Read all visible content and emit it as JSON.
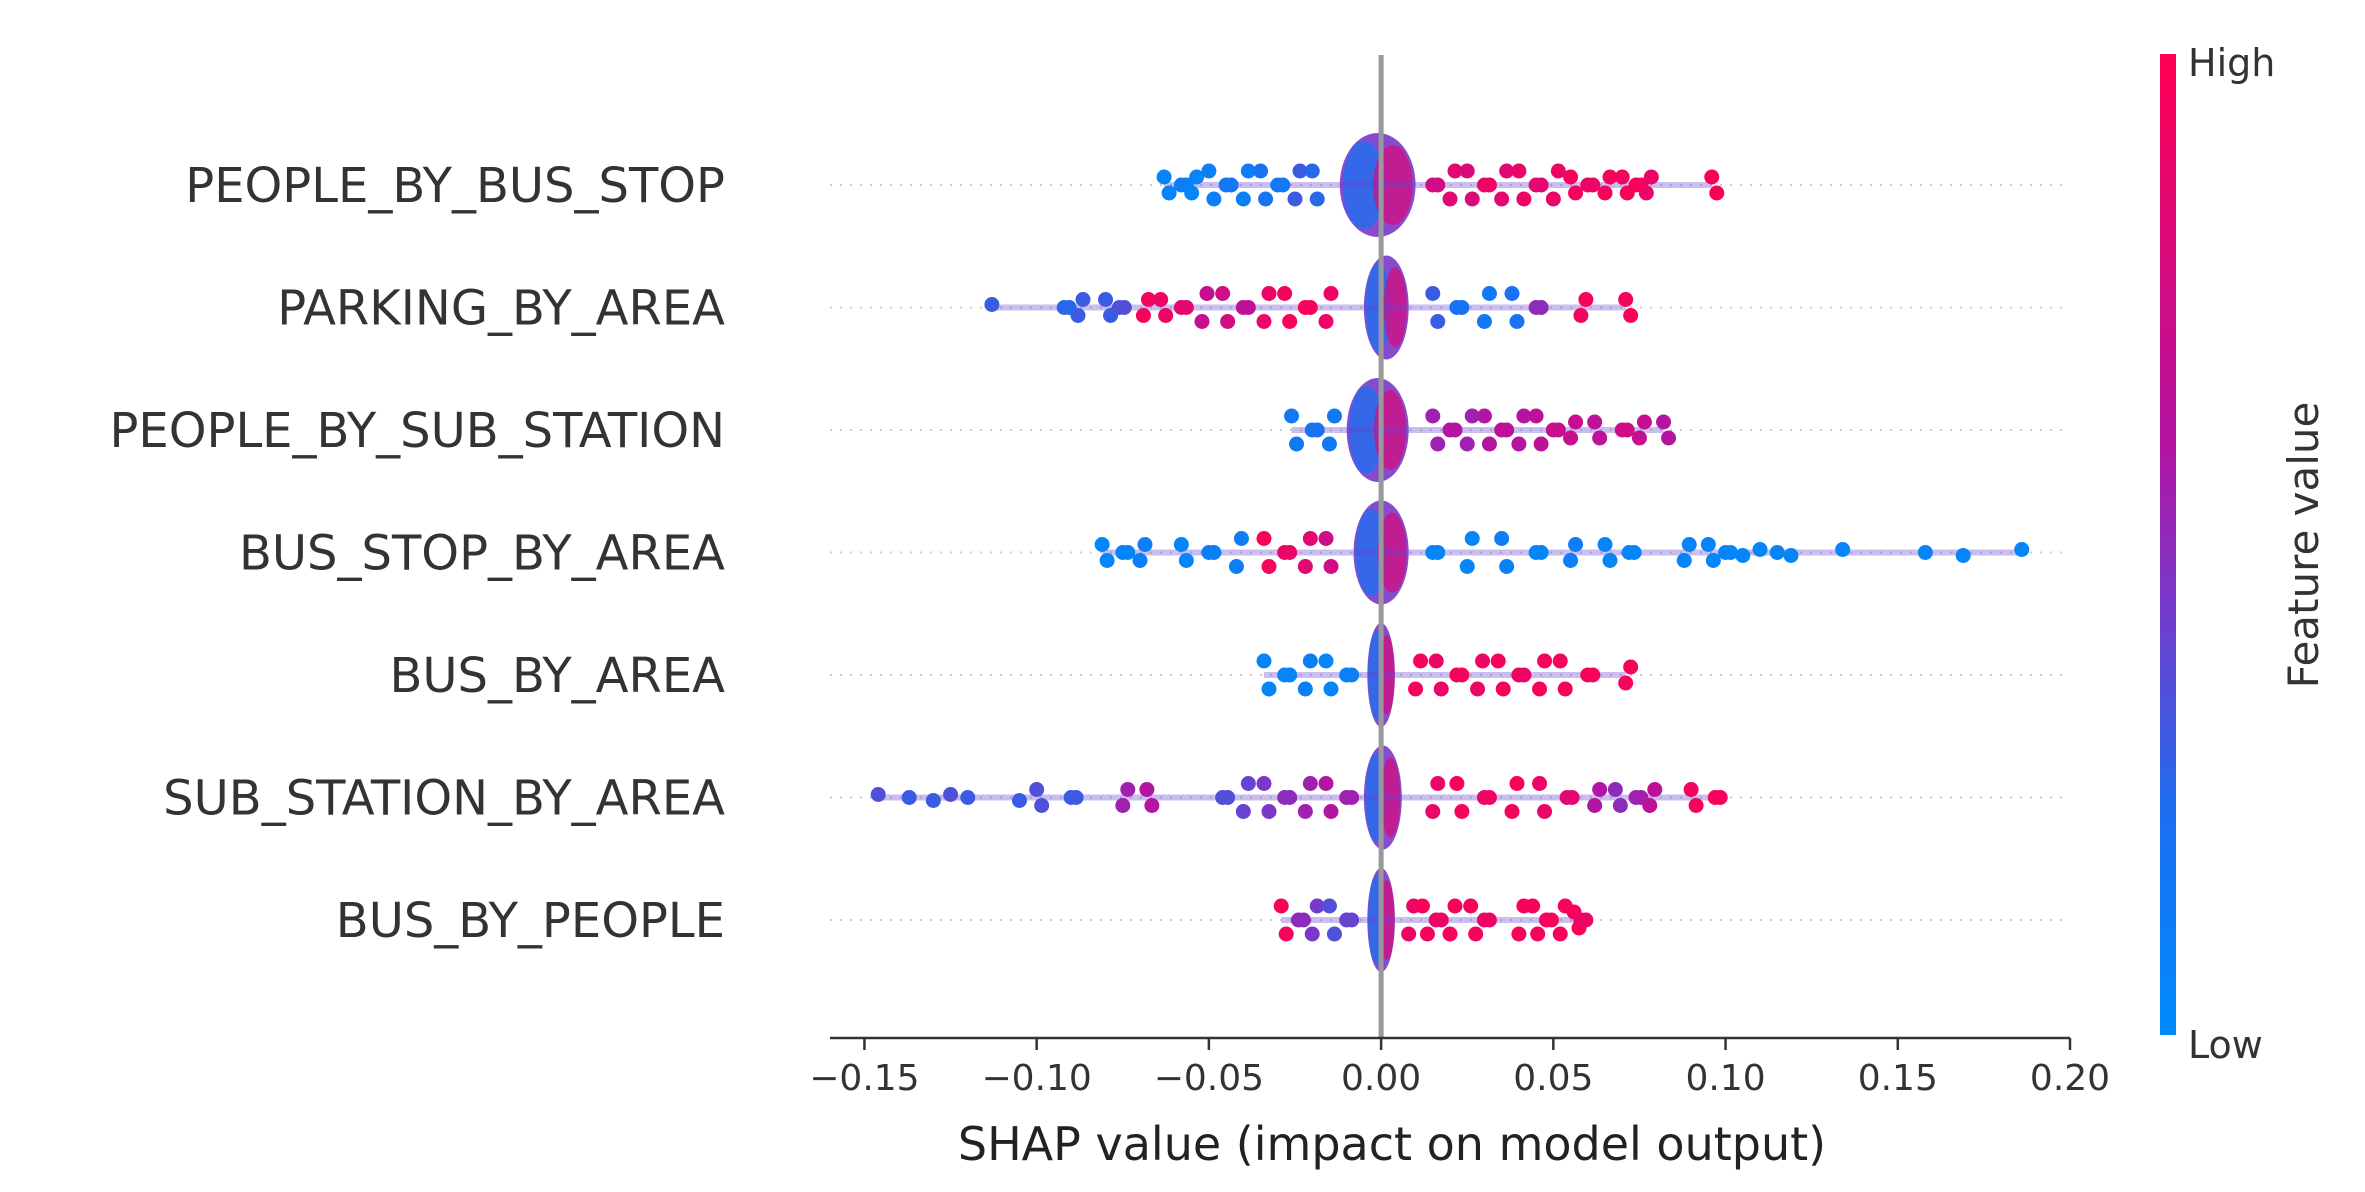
{
  "chart_data": {
    "type": "scatter",
    "subtype": "shap-beeswarm",
    "title": "",
    "xlabel": "SHAP value (impact on model output)",
    "ylabel": "",
    "xlim": [
      -0.16,
      0.2
    ],
    "xticks": [
      -0.15,
      -0.1,
      -0.05,
      0.0,
      0.05,
      0.1,
      0.15,
      0.2
    ],
    "xtick_labels": [
      "−0.15",
      "−0.10",
      "−0.05",
      "0.00",
      "0.05",
      "0.10",
      "0.15",
      "0.20"
    ],
    "grid": false,
    "colorbar": {
      "title": "Feature value",
      "high_label": "High",
      "low_label": "Low",
      "low_color": "#008bfb",
      "high_color": "#ff0052"
    },
    "features": [
      {
        "name": "PEOPLE_BY_BUS_STOP",
        "min": -0.063,
        "max": 0.096,
        "core": [
          -0.012,
          0.01
        ],
        "points": [
          {
            "x": -0.063,
            "v": 0.05
          },
          {
            "x": -0.058,
            "v": 0.1
          },
          {
            "x": -0.055,
            "v": 0.05
          },
          {
            "x": -0.05,
            "v": 0.1
          },
          {
            "x": -0.045,
            "v": 0.15
          },
          {
            "x": -0.04,
            "v": 0.1
          },
          {
            "x": -0.035,
            "v": 0.2
          },
          {
            "x": -0.03,
            "v": 0.15
          },
          {
            "x": -0.025,
            "v": 0.3
          },
          {
            "x": -0.02,
            "v": 0.25
          },
          {
            "x": 0.015,
            "v": 0.75
          },
          {
            "x": 0.02,
            "v": 0.85
          },
          {
            "x": 0.025,
            "v": 0.8
          },
          {
            "x": 0.03,
            "v": 0.9
          },
          {
            "x": 0.035,
            "v": 0.85
          },
          {
            "x": 0.04,
            "v": 0.9
          },
          {
            "x": 0.045,
            "v": 0.85
          },
          {
            "x": 0.05,
            "v": 0.9
          },
          {
            "x": 0.055,
            "v": 0.95
          },
          {
            "x": 0.06,
            "v": 0.9
          },
          {
            "x": 0.065,
            "v": 0.95
          },
          {
            "x": 0.07,
            "v": 0.95
          },
          {
            "x": 0.074,
            "v": 0.95
          },
          {
            "x": 0.077,
            "v": 0.9
          },
          {
            "x": 0.096,
            "v": 0.98
          }
        ]
      },
      {
        "name": "PARKING_BY_AREA",
        "min": -0.113,
        "max": 0.071,
        "core": [
          -0.005,
          0.008
        ],
        "points": [
          {
            "x": -0.113,
            "v": 0.3
          },
          {
            "x": -0.092,
            "v": 0.25
          },
          {
            "x": -0.088,
            "v": 0.3
          },
          {
            "x": -0.08,
            "v": 0.3
          },
          {
            "x": -0.076,
            "v": 0.35
          },
          {
            "x": -0.069,
            "v": 0.95
          },
          {
            "x": -0.064,
            "v": 0.9
          },
          {
            "x": -0.058,
            "v": 0.85
          },
          {
            "x": -0.052,
            "v": 0.7
          },
          {
            "x": -0.046,
            "v": 0.75
          },
          {
            "x": -0.04,
            "v": 0.65
          },
          {
            "x": -0.034,
            "v": 0.9
          },
          {
            "x": -0.028,
            "v": 0.95
          },
          {
            "x": -0.022,
            "v": 0.95
          },
          {
            "x": -0.016,
            "v": 0.9
          },
          {
            "x": 0.015,
            "v": 0.3
          },
          {
            "x": 0.022,
            "v": 0.2
          },
          {
            "x": 0.03,
            "v": 0.15
          },
          {
            "x": 0.038,
            "v": 0.2
          },
          {
            "x": 0.045,
            "v": 0.5
          },
          {
            "x": 0.058,
            "v": 0.95
          },
          {
            "x": 0.071,
            "v": 0.95
          }
        ]
      },
      {
        "name": "PEOPLE_BY_SUB_STATION",
        "min": -0.026,
        "max": 0.082,
        "core": [
          -0.01,
          0.008
        ],
        "points": [
          {
            "x": -0.026,
            "v": 0.15
          },
          {
            "x": -0.02,
            "v": 0.2
          },
          {
            "x": -0.015,
            "v": 0.15
          },
          {
            "x": 0.015,
            "v": 0.55
          },
          {
            "x": 0.02,
            "v": 0.6
          },
          {
            "x": 0.025,
            "v": 0.55
          },
          {
            "x": 0.03,
            "v": 0.6
          },
          {
            "x": 0.035,
            "v": 0.65
          },
          {
            "x": 0.04,
            "v": 0.6
          },
          {
            "x": 0.045,
            "v": 0.65
          },
          {
            "x": 0.05,
            "v": 0.7
          },
          {
            "x": 0.055,
            "v": 0.7
          },
          {
            "x": 0.062,
            "v": 0.65
          },
          {
            "x": 0.07,
            "v": 0.75
          },
          {
            "x": 0.075,
            "v": 0.7
          },
          {
            "x": 0.082,
            "v": 0.6
          }
        ]
      },
      {
        "name": "BUS_STOP_BY_AREA",
        "min": -0.081,
        "max": 0.186,
        "core": [
          -0.008,
          0.008
        ],
        "points": [
          {
            "x": -0.081,
            "v": 0.05
          },
          {
            "x": -0.075,
            "v": 0.05
          },
          {
            "x": -0.07,
            "v": 0.1
          },
          {
            "x": -0.058,
            "v": 0.05
          },
          {
            "x": -0.05,
            "v": 0.1
          },
          {
            "x": -0.042,
            "v": 0.1
          },
          {
            "x": -0.034,
            "v": 0.95
          },
          {
            "x": -0.028,
            "v": 0.9
          },
          {
            "x": -0.022,
            "v": 0.85
          },
          {
            "x": -0.016,
            "v": 0.75
          },
          {
            "x": 0.015,
            "v": 0.05
          },
          {
            "x": 0.025,
            "v": 0.05
          },
          {
            "x": 0.035,
            "v": 0.1
          },
          {
            "x": 0.045,
            "v": 0.05
          },
          {
            "x": 0.055,
            "v": 0.1
          },
          {
            "x": 0.065,
            "v": 0.05
          },
          {
            "x": 0.072,
            "v": 0.05
          },
          {
            "x": 0.088,
            "v": 0.05
          },
          {
            "x": 0.095,
            "v": 0.05
          },
          {
            "x": 0.1,
            "v": 0.05
          },
          {
            "x": 0.105,
            "v": 0.05
          },
          {
            "x": 0.11,
            "v": 0.05
          },
          {
            "x": 0.115,
            "v": 0.05
          },
          {
            "x": 0.119,
            "v": 0.05
          },
          {
            "x": 0.134,
            "v": 0.05
          },
          {
            "x": 0.158,
            "v": 0.05
          },
          {
            "x": 0.169,
            "v": 0.05
          },
          {
            "x": 0.186,
            "v": 0.05
          }
        ]
      },
      {
        "name": "BUS_BY_AREA",
        "min": -0.034,
        "max": 0.071,
        "core": [
          -0.004,
          0.004
        ],
        "points": [
          {
            "x": -0.034,
            "v": 0.05
          },
          {
            "x": -0.028,
            "v": 0.05
          },
          {
            "x": -0.022,
            "v": 0.1
          },
          {
            "x": -0.016,
            "v": 0.05
          },
          {
            "x": -0.01,
            "v": 0.1
          },
          {
            "x": 0.01,
            "v": 0.95
          },
          {
            "x": 0.016,
            "v": 0.9
          },
          {
            "x": 0.022,
            "v": 0.95
          },
          {
            "x": 0.028,
            "v": 0.9
          },
          {
            "x": 0.034,
            "v": 0.95
          },
          {
            "x": 0.04,
            "v": 0.9
          },
          {
            "x": 0.046,
            "v": 0.95
          },
          {
            "x": 0.052,
            "v": 0.95
          },
          {
            "x": 0.06,
            "v": 0.95
          },
          {
            "x": 0.071,
            "v": 0.95
          }
        ]
      },
      {
        "name": "SUB_STATION_BY_AREA",
        "min": -0.146,
        "max": 0.097,
        "core": [
          -0.005,
          0.006
        ],
        "points": [
          {
            "x": -0.146,
            "v": 0.35
          },
          {
            "x": -0.137,
            "v": 0.3
          },
          {
            "x": -0.13,
            "v": 0.3
          },
          {
            "x": -0.125,
            "v": 0.35
          },
          {
            "x": -0.12,
            "v": 0.3
          },
          {
            "x": -0.105,
            "v": 0.3
          },
          {
            "x": -0.1,
            "v": 0.35
          },
          {
            "x": -0.09,
            "v": 0.3
          },
          {
            "x": -0.075,
            "v": 0.55
          },
          {
            "x": -0.068,
            "v": 0.6
          },
          {
            "x": -0.046,
            "v": 0.35
          },
          {
            "x": -0.04,
            "v": 0.4
          },
          {
            "x": -0.034,
            "v": 0.45
          },
          {
            "x": -0.028,
            "v": 0.5
          },
          {
            "x": -0.022,
            "v": 0.55
          },
          {
            "x": -0.016,
            "v": 0.6
          },
          {
            "x": -0.01,
            "v": 0.55
          },
          {
            "x": 0.015,
            "v": 0.9
          },
          {
            "x": 0.022,
            "v": 0.95
          },
          {
            "x": 0.03,
            "v": 0.9
          },
          {
            "x": 0.038,
            "v": 0.95
          },
          {
            "x": 0.046,
            "v": 0.9
          },
          {
            "x": 0.054,
            "v": 0.85
          },
          {
            "x": 0.062,
            "v": 0.6
          },
          {
            "x": 0.068,
            "v": 0.5
          },
          {
            "x": 0.074,
            "v": 0.55
          },
          {
            "x": 0.078,
            "v": 0.65
          },
          {
            "x": 0.09,
            "v": 0.95
          },
          {
            "x": 0.097,
            "v": 0.95
          }
        ]
      },
      {
        "name": "BUS_BY_PEOPLE",
        "min": -0.029,
        "max": 0.058,
        "core": [
          -0.004,
          0.004
        ],
        "points": [
          {
            "x": -0.029,
            "v": 0.95
          },
          {
            "x": -0.024,
            "v": 0.5
          },
          {
            "x": -0.02,
            "v": 0.45
          },
          {
            "x": -0.015,
            "v": 0.35
          },
          {
            "x": -0.01,
            "v": 0.4
          },
          {
            "x": 0.008,
            "v": 0.9
          },
          {
            "x": 0.012,
            "v": 0.95
          },
          {
            "x": 0.016,
            "v": 0.9
          },
          {
            "x": 0.02,
            "v": 0.95
          },
          {
            "x": 0.026,
            "v": 0.95
          },
          {
            "x": 0.03,
            "v": 0.9
          },
          {
            "x": 0.04,
            "v": 0.95
          },
          {
            "x": 0.044,
            "v": 0.95
          },
          {
            "x": 0.048,
            "v": 0.95
          },
          {
            "x": 0.052,
            "v": 0.95
          },
          {
            "x": 0.056,
            "v": 0.95
          },
          {
            "x": 0.058,
            "v": 0.9
          }
        ]
      }
    ]
  }
}
